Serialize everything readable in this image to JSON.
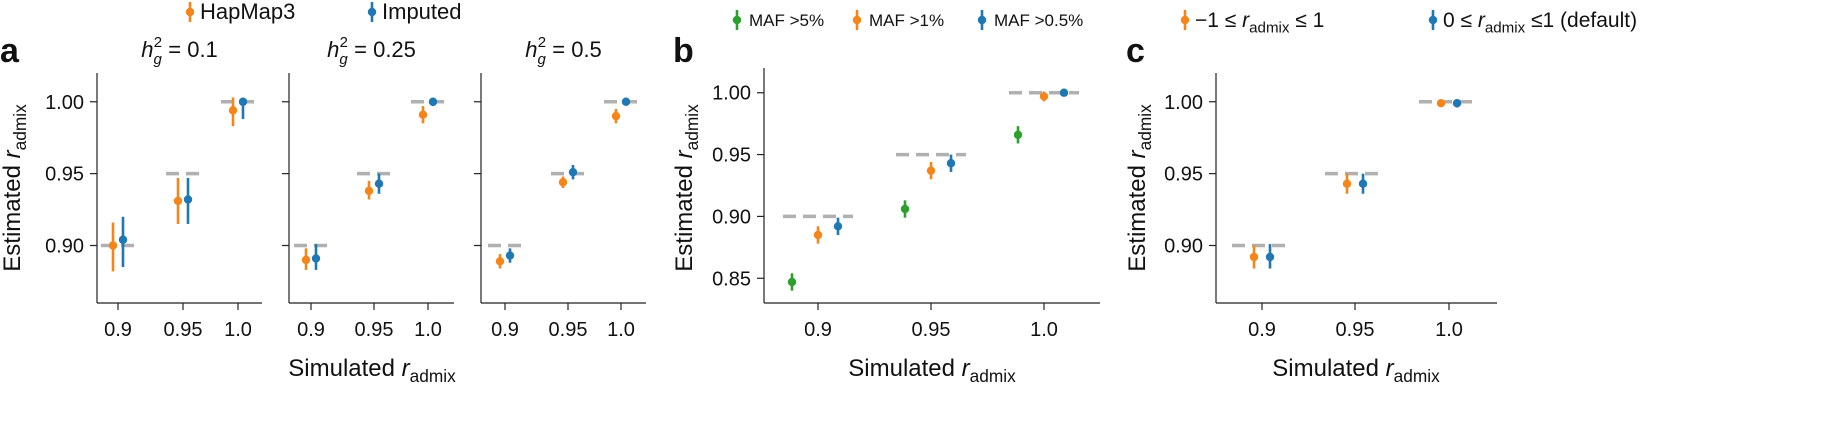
{
  "colors": {
    "hapmap3": "#f58518",
    "imputed": "#1f77b4",
    "maf5": "#2ca02c",
    "maf1": "#f58518",
    "maf05": "#1f77b4",
    "target": "#b0b0b0",
    "axis": "#222222"
  },
  "chart_data": [
    {
      "id": "a",
      "type": "scatter",
      "panel_label": "a",
      "legend": [
        "HapMap3",
        "Imputed"
      ],
      "xlabel_main": "Simulated ",
      "xlabel_sub": "admix",
      "xlabel_r": "r",
      "ylabel_main": "Estimated ",
      "ylabel_sub": "admix",
      "ylabel_r": "r",
      "categories": [
        "0.9",
        "0.95",
        "1.0"
      ],
      "x_true": [
        0.9,
        0.95,
        1.0
      ],
      "ylim": [
        0.86,
        1.02
      ],
      "yticks": [
        0.9,
        0.95,
        1.0
      ],
      "ytick_labels": [
        "0.90",
        "0.95",
        "1.00"
      ],
      "subpanels": [
        {
          "title_h": "h",
          "title_sub": "g",
          "title_sup": "2",
          "title_value": " = 0.1",
          "series": [
            {
              "name": "HapMap3",
              "values": [
                0.9,
                0.931,
                0.994
              ],
              "lower": [
                0.882,
                0.915,
                0.983
              ],
              "upper": [
                0.916,
                0.947,
                1.003
              ]
            },
            {
              "name": "Imputed",
              "values": [
                0.904,
                0.932,
                1.0
              ],
              "lower": [
                0.885,
                0.915,
                0.988
              ],
              "upper": [
                0.92,
                0.947,
                1.001
              ]
            }
          ]
        },
        {
          "title_h": "h",
          "title_sub": "g",
          "title_sup": "2",
          "title_value": " = 0.25",
          "series": [
            {
              "name": "HapMap3",
              "values": [
                0.89,
                0.938,
                0.991
              ],
              "lower": [
                0.883,
                0.932,
                0.985
              ],
              "upper": [
                0.898,
                0.945,
                0.997
              ]
            },
            {
              "name": "Imputed",
              "values": [
                0.891,
                0.943,
                1.0
              ],
              "lower": [
                0.883,
                0.936,
                0.997
              ],
              "upper": [
                0.901,
                0.95,
                1.001
              ]
            }
          ]
        },
        {
          "title_h": "h",
          "title_sub": "g",
          "title_sup": "2",
          "title_value": " = 0.5",
          "series": [
            {
              "name": "HapMap3",
              "values": [
                0.889,
                0.944,
                0.99
              ],
              "lower": [
                0.884,
                0.94,
                0.985
              ],
              "upper": [
                0.894,
                0.948,
                0.995
              ]
            },
            {
              "name": "Imputed",
              "values": [
                0.893,
                0.951,
                1.0
              ],
              "lower": [
                0.888,
                0.946,
                0.998
              ],
              "upper": [
                0.898,
                0.956,
                1.001
              ]
            }
          ]
        }
      ]
    },
    {
      "id": "b",
      "type": "scatter",
      "panel_label": "b",
      "legend": [
        "MAF >5%",
        "MAF >1%",
        "MAF >0.5%"
      ],
      "xlabel_main": "Simulated ",
      "xlabel_sub": "admix",
      "xlabel_r": "r",
      "ylabel_main": "Estimated ",
      "ylabel_sub": "admix",
      "ylabel_r": "r",
      "categories": [
        "0.9",
        "0.95",
        "1.0"
      ],
      "x_true": [
        0.9,
        0.95,
        1.0
      ],
      "ylim": [
        0.83,
        1.02
      ],
      "yticks": [
        0.85,
        0.9,
        0.95,
        1.0
      ],
      "ytick_labels": [
        "0.85",
        "0.90",
        "0.95",
        "1.00"
      ],
      "series": [
        {
          "name": "MAF >5%",
          "values": [
            0.847,
            0.906,
            0.966
          ],
          "lower": [
            0.84,
            0.899,
            0.959
          ],
          "upper": [
            0.854,
            0.913,
            0.973
          ]
        },
        {
          "name": "MAF >1%",
          "values": [
            0.885,
            0.937,
            0.997
          ],
          "lower": [
            0.878,
            0.93,
            0.993
          ],
          "upper": [
            0.892,
            0.944,
            1.001
          ]
        },
        {
          "name": "MAF >0.5%",
          "values": [
            0.892,
            0.943,
            1.0
          ],
          "lower": [
            0.885,
            0.936,
            0.998
          ],
          "upper": [
            0.899,
            0.95,
            1.001
          ]
        }
      ]
    },
    {
      "id": "c",
      "type": "scatter",
      "panel_label": "c",
      "legend": [
        {
          "prefix": "−1 ≤ ",
          "r": "r",
          "sub": "admix",
          "suffix": " ≤ 1"
        },
        {
          "prefix": "0 ≤ ",
          "r": "r",
          "sub": "admix",
          "suffix": " ≤1 (default)"
        }
      ],
      "xlabel_main": "Simulated ",
      "xlabel_sub": "admix",
      "xlabel_r": "r",
      "ylabel_main": "Estimated ",
      "ylabel_sub": "admix",
      "ylabel_r": "r",
      "categories": [
        "0.9",
        "0.95",
        "1.0"
      ],
      "x_true": [
        0.9,
        0.95,
        1.0
      ],
      "ylim": [
        0.86,
        1.02
      ],
      "yticks": [
        0.9,
        0.95,
        1.0
      ],
      "ytick_labels": [
        "0.90",
        "0.95",
        "1.00"
      ],
      "series": [
        {
          "name": "-1 to 1",
          "values": [
            0.892,
            0.943,
            0.999
          ],
          "lower": [
            0.884,
            0.936,
            0.997
          ],
          "upper": [
            0.9,
            0.95,
            1.001
          ]
        },
        {
          "name": "0 to 1 (default)",
          "values": [
            0.892,
            0.943,
            0.999
          ],
          "lower": [
            0.884,
            0.936,
            0.996
          ],
          "upper": [
            0.901,
            0.95,
            1.001
          ]
        }
      ]
    }
  ]
}
